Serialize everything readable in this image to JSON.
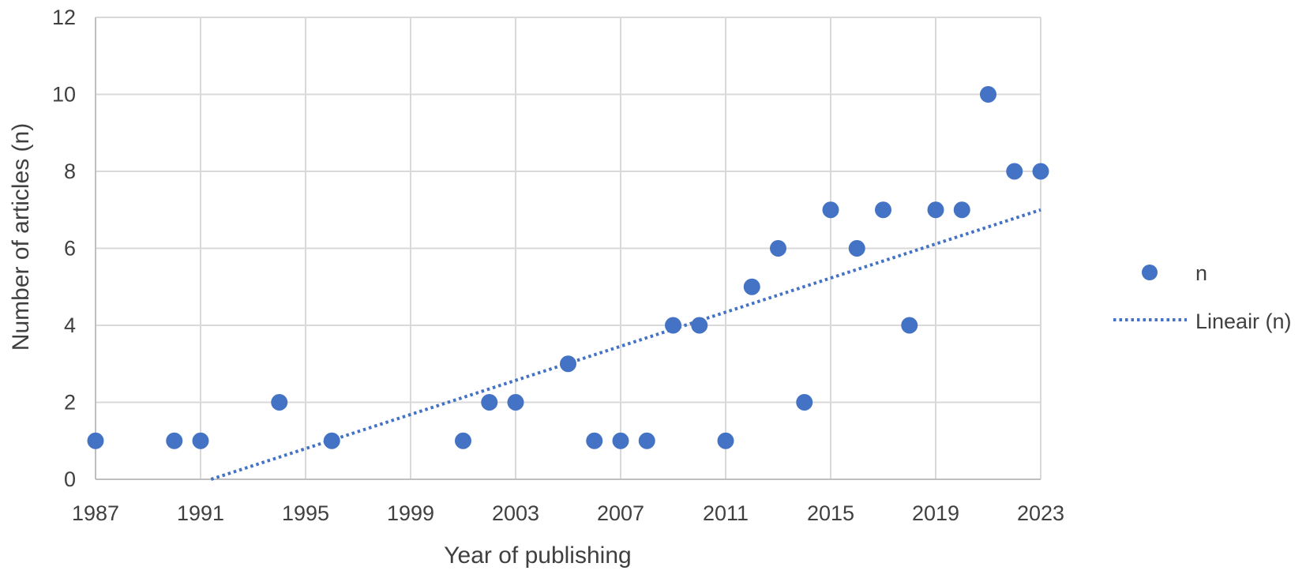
{
  "chart_data": {
    "type": "scatter",
    "title": "",
    "xlabel": "Year of publishing",
    "ylabel": "Number of articles (n)",
    "xlim": [
      1987,
      2023
    ],
    "ylim": [
      0,
      12
    ],
    "x_ticks": [
      "1987",
      "1991",
      "1995",
      "1999",
      "2003",
      "2007",
      "2011",
      "2015",
      "2019",
      "2023"
    ],
    "y_ticks": [
      "0",
      "2",
      "4",
      "6",
      "8",
      "10",
      "12"
    ],
    "grid": true,
    "legend_position": "right",
    "series": [
      {
        "name": "n",
        "color": "#4472c4",
        "marker": "circle",
        "points": [
          {
            "x": 1987,
            "y": 1
          },
          {
            "x": 1990,
            "y": 1
          },
          {
            "x": 1991,
            "y": 1
          },
          {
            "x": 1994,
            "y": 2
          },
          {
            "x": 1996,
            "y": 1
          },
          {
            "x": 2001,
            "y": 1
          },
          {
            "x": 2002,
            "y": 2
          },
          {
            "x": 2003,
            "y": 2
          },
          {
            "x": 2005,
            "y": 3
          },
          {
            "x": 2006,
            "y": 1
          },
          {
            "x": 2007,
            "y": 1
          },
          {
            "x": 2008,
            "y": 1
          },
          {
            "x": 2009,
            "y": 4
          },
          {
            "x": 2010,
            "y": 4
          },
          {
            "x": 2011,
            "y": 1
          },
          {
            "x": 2012,
            "y": 5
          },
          {
            "x": 2013,
            "y": 6
          },
          {
            "x": 2014,
            "y": 2
          },
          {
            "x": 2015,
            "y": 7
          },
          {
            "x": 2016,
            "y": 6
          },
          {
            "x": 2017,
            "y": 7
          },
          {
            "x": 2018,
            "y": 4
          },
          {
            "x": 2019,
            "y": 7
          },
          {
            "x": 2020,
            "y": 7
          },
          {
            "x": 2021,
            "y": 10
          },
          {
            "x": 2022,
            "y": 8
          },
          {
            "x": 2023,
            "y": 8
          }
        ]
      }
    ],
    "trendline": {
      "name": "Lineair (n)",
      "type": "linear",
      "style": "dotted",
      "color": "#4472c4",
      "start": {
        "x": 1991.4,
        "y": 0
      },
      "end": {
        "x": 2023,
        "y": 7
      }
    }
  }
}
